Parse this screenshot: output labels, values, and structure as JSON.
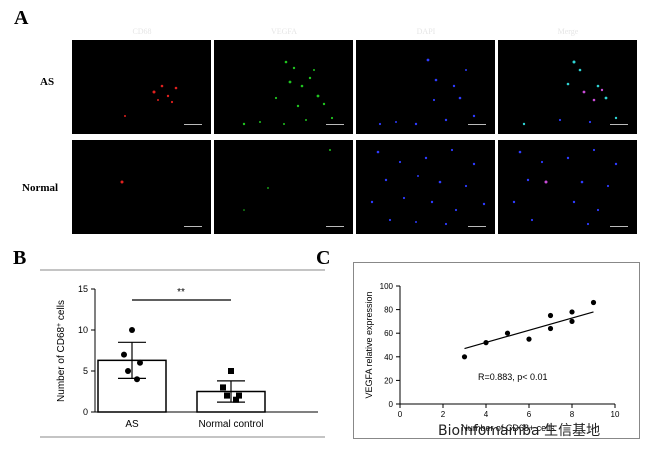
{
  "panel_a": {
    "letter": "A",
    "columns": [
      "CD68",
      "VEGFA",
      "DAPI",
      "Merge"
    ],
    "rows": [
      "AS",
      "Normal"
    ]
  },
  "panel_b": {
    "letter": "B",
    "significance": "**"
  },
  "panel_c": {
    "letter": "C",
    "annotation": "R=0.883, p< 0.01"
  },
  "watermark": "Bioinfomamba 生信基地",
  "colors": {
    "cd68": "#e0201e",
    "vegfa": "#1fc51f",
    "dapi": "#2e3bff",
    "merge_cyan": "#2ed4d4"
  },
  "chart_data": [
    {
      "type": "bar",
      "categories": [
        "AS",
        "Normal control"
      ],
      "ylabel": "Number of CD68+ cells",
      "ylabel_main": "Number of CD68",
      "ylabel_sup": "+",
      "ylabel_tail": " cells",
      "ylim": [
        0,
        15
      ],
      "yticks": [
        "0",
        "5",
        "10",
        "15"
      ],
      "bars": [
        {
          "category": "AS",
          "mean": 6.3,
          "sd": 2.2,
          "points": [
            10,
            7,
            6,
            5,
            4
          ]
        },
        {
          "category": "Normal control",
          "mean": 2.5,
          "sd": 1.3,
          "points": [
            5,
            3,
            2,
            2,
            1.5
          ]
        }
      ],
      "significance": "**"
    },
    {
      "type": "scatter",
      "xlabel": "Number of CD68+ cells",
      "ylabel": "VEGFA relative expression",
      "xlim": [
        0,
        10
      ],
      "ylim": [
        0,
        100
      ],
      "xticks": [
        "0",
        "2",
        "4",
        "6",
        "8",
        "10"
      ],
      "yticks": [
        "0",
        "20",
        "40",
        "60",
        "80",
        "100"
      ],
      "points": [
        [
          3,
          40
        ],
        [
          4,
          52
        ],
        [
          5,
          60
        ],
        [
          6,
          55
        ],
        [
          7,
          64
        ],
        [
          7,
          75
        ],
        [
          8,
          70
        ],
        [
          8,
          78
        ],
        [
          9,
          86
        ]
      ],
      "fit": {
        "x": [
          3,
          9
        ],
        "y": [
          47,
          78
        ]
      },
      "annotation": "R=0.883, p< 0.01"
    }
  ]
}
